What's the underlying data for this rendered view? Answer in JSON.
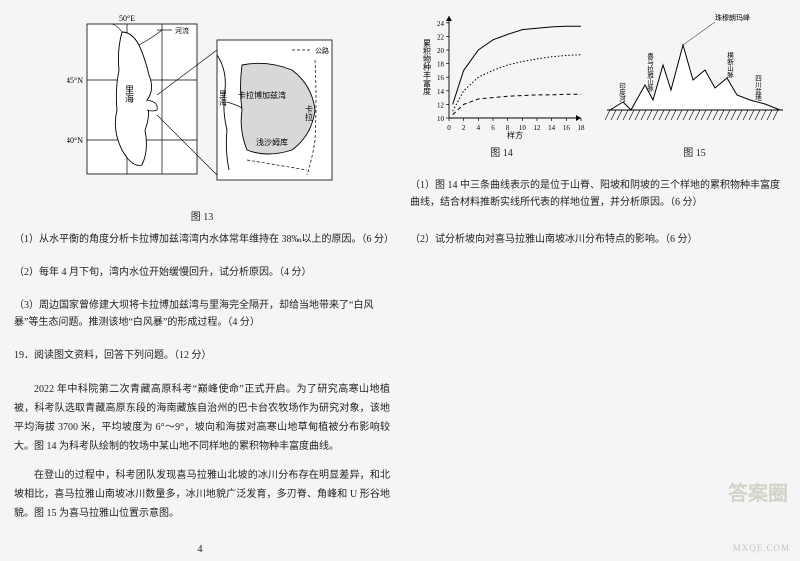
{
  "fig13": {
    "caption": "图 13",
    "labels": {
      "lon": "50°E",
      "lat45": "45°N",
      "lat40": "40°N",
      "sea": "里海",
      "bay": "卡拉博加兹湾",
      "kara": "卡拉",
      "desert": "浅沙姆库",
      "river_legend": "河流",
      "road_legend": "公路"
    },
    "colors": {
      "line": "#000",
      "bg": "#fff",
      "land": "#cfcfcf",
      "connector": "#000"
    }
  },
  "q13_1": "（1）从水平衡的角度分析卡拉博加兹湾湾内水体常年维持在 38‰以上的原因。（6 分）",
  "q13_2": "（2）每年 4 月下旬，湾内水位开始缓慢回升，试分析原因。（4 分）",
  "q13_3": "（3）周边国家曾修建大坝将卡拉博加兹湾与里海完全隔开，却给当地带来了“白风暴”等生态问题。推测该地“白风暴”的形成过程。（4 分）",
  "q19_head": "19．阅读图文资料，回答下列问题。（12 分）",
  "q19_p1": "2022 年中科院第二次青藏高原科考“巅峰使命”正式开启。为了研究高寒山地植被，科考队选取青藏高原东段的海南藏族自治州的巴卡台农牧场作为研究对象，该地平均海拔 3700 米，平均坡度为 6°～9°，坡向和海拔对高寒山地草甸植被分布影响较大。图 14 为科考队绘制的牧场中某山地不同样地的累积物种丰富度曲线。",
  "q19_p2": "在登山的过程中，科考团队发现喜马拉雅山北坡的冰川分布存在明显差异，和北坡相比，喜马拉雅山南坡冰川数量多，冰川地貌广泛发育，多刃脊、角峰和 U 形谷地貌。图 15 为喜马拉雅山位置示意图。",
  "fig14": {
    "caption": "图 14",
    "xlabel": "样方",
    "ylabel": "累积物种丰富度",
    "xlim": [
      0,
      18
    ],
    "ylim": [
      10,
      25
    ],
    "xticks": [
      0,
      2,
      4,
      6,
      8,
      10,
      12,
      14,
      16,
      18
    ],
    "yticks": [
      10,
      12,
      14,
      16,
      18,
      20,
      22,
      24
    ],
    "colors": {
      "axis": "#000",
      "curve": "#000",
      "bg": "#fff"
    },
    "curves": {
      "top": {
        "style": "solid",
        "pts": [
          [
            0.5,
            12
          ],
          [
            2,
            17
          ],
          [
            4,
            20
          ],
          [
            6,
            21.5
          ],
          [
            8,
            22.3
          ],
          [
            10,
            23
          ],
          [
            12,
            23.2
          ],
          [
            14,
            23.4
          ],
          [
            16,
            23.5
          ],
          [
            18,
            23.5
          ]
        ]
      },
      "mid": {
        "style": "dotted",
        "pts": [
          [
            0.5,
            11
          ],
          [
            2,
            14
          ],
          [
            4,
            16
          ],
          [
            6,
            17
          ],
          [
            8,
            17.8
          ],
          [
            10,
            18.3
          ],
          [
            12,
            18.7
          ],
          [
            14,
            19
          ],
          [
            16,
            19.2
          ],
          [
            18,
            19.3
          ]
        ]
      },
      "bot": {
        "style": "dashed",
        "pts": [
          [
            0.5,
            10.5
          ],
          [
            2,
            12
          ],
          [
            4,
            12.8
          ],
          [
            6,
            13
          ],
          [
            8,
            13.2
          ],
          [
            10,
            13.3
          ],
          [
            12,
            13.4
          ],
          [
            14,
            13.4
          ],
          [
            16,
            13.5
          ],
          [
            18,
            13.5
          ]
        ]
      }
    }
  },
  "fig15": {
    "caption": "图 15",
    "colors": {
      "line": "#000",
      "fill": "#fff"
    },
    "labels": {
      "everest": "珠穆朗玛峰",
      "left1": "印度河",
      "left2": "喜马拉雅山脉",
      "right1": "横断山脉",
      "right2": "四川盆地"
    }
  },
  "q19_1": "（1）图 14 中三条曲线表示的是位于山脊、阳坡和阴坡的三个样地的累积物种丰富度曲线，结合材料推断实线所代表的样地位置，并分析原因。（6 分）",
  "q19_2": "（2）试分析坡向对喜马拉雅山南坡冰川分布特点的影响。（6 分）",
  "page_num": "4",
  "watermark": {
    "text": "答案圈",
    "url": "MXQE.COM"
  }
}
